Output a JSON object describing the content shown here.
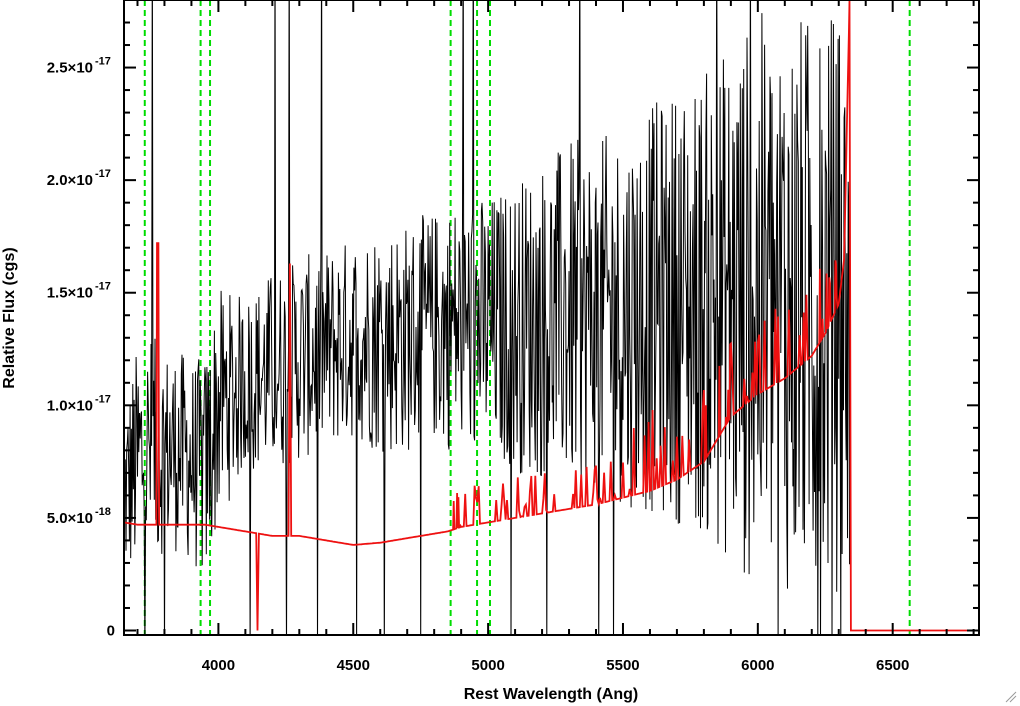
{
  "chart_data": {
    "type": "line",
    "title": "",
    "xlabel": "Rest Wavelength (Ang)",
    "ylabel": "Relative Flux (cgs)",
    "xlim": [
      3650,
      6820
    ],
    "ylim": [
      -2e-19,
      2.8e-17
    ],
    "x_ticks": [
      {
        "value": 4000,
        "label": "4000"
      },
      {
        "value": 4500,
        "label": "4500"
      },
      {
        "value": 5000,
        "label": "5000"
      },
      {
        "value": 5500,
        "label": "5500"
      },
      {
        "value": 6000,
        "label": "6000"
      },
      {
        "value": 6500,
        "label": "6500"
      }
    ],
    "y_ticks": [
      {
        "value": 0,
        "mantissa": "0",
        "exponent": ""
      },
      {
        "value": 5e-18,
        "mantissa": "5.0×10",
        "exponent": "-18"
      },
      {
        "value": 1e-17,
        "mantissa": "1.0×10",
        "exponent": "-17"
      },
      {
        "value": 1.5e-17,
        "mantissa": "1.5×10",
        "exponent": "-17"
      },
      {
        "value": 2e-17,
        "mantissa": "2.0×10",
        "exponent": "-17"
      },
      {
        "value": 2.5e-17,
        "mantissa": "2.5×10",
        "exponent": "-17"
      }
    ],
    "grid": false,
    "reference_lines": {
      "style": "dashed",
      "color": "#00dd00",
      "x": [
        3727,
        3934,
        3969,
        4861,
        4959,
        5007,
        6563
      ]
    },
    "series": [
      {
        "color": "#000000",
        "style": "noisy-spectrum",
        "x": [
          3650,
          3700,
          3750,
          3800,
          3850,
          3900,
          3950,
          4000,
          4100,
          4200,
          4300,
          4400,
          4500,
          4600,
          4700,
          4800,
          4900,
          5000,
          5100,
          5200,
          5300,
          5400,
          5500,
          5600,
          5700,
          5800,
          5900,
          6000,
          6100,
          6200,
          6300,
          6340
        ],
        "values": [
          6e-18,
          7.5e-18,
          8e-18,
          8e-18,
          8e-18,
          7.5e-18,
          7e-18,
          1e-17,
          1.1e-17,
          1.15e-17,
          1.2e-17,
          1.25e-17,
          1.3e-17,
          1.3e-17,
          1.3e-17,
          1.35e-17,
          1.35e-17,
          1.35e-17,
          1.35e-17,
          1.38e-17,
          1.4e-17,
          1.4e-17,
          1.4e-17,
          1.42e-17,
          1.45e-17,
          1.45e-17,
          1.45e-17,
          1.45e-17,
          1.45e-17,
          1.45e-17,
          1.45e-17,
          1.4e-17
        ],
        "noise": [
          3e-18,
          4e-18,
          4e-18,
          3.5e-18,
          3.5e-18,
          3.5e-18,
          4e-18,
          4e-18,
          3e-18,
          3.5e-18,
          3.5e-18,
          3.5e-18,
          3.5e-18,
          4e-18,
          4e-18,
          4e-18,
          4.5e-18,
          4.5e-18,
          5e-18,
          5.5e-18,
          6e-18,
          6e-18,
          6.5e-18,
          7e-18,
          7.5e-18,
          8e-18,
          9e-18,
          1e-17,
          1e-17,
          1e-17,
          1e-17,
          1e-17
        ]
      },
      {
        "color": "#ee1111",
        "style": "model-spectrum",
        "x": [
          3650,
          3700,
          3750,
          3800,
          3850,
          3900,
          3950,
          4000,
          4100,
          4200,
          4300,
          4400,
          4500,
          4600,
          4700,
          4800,
          4850,
          4900,
          5000,
          5100,
          5200,
          5300,
          5400,
          5500,
          5600,
          5700,
          5800,
          5850,
          5900,
          6000,
          6100,
          6200,
          6250,
          6300,
          6320,
          6340,
          6345,
          6820
        ],
        "values": [
          4.8e-18,
          4.7e-18,
          4.7e-18,
          4.7e-18,
          4.7e-18,
          4.7e-18,
          4.7e-18,
          4.6e-18,
          4.4e-18,
          4.2e-18,
          4.2e-18,
          4e-18,
          3.8e-18,
          3.9e-18,
          4.1e-18,
          4.3e-18,
          4.4e-18,
          4.6e-18,
          4.8e-18,
          5e-18,
          5.2e-18,
          5.4e-18,
          5.6e-18,
          5.9e-18,
          6.2e-18,
          6.7e-18,
          7.5e-18,
          8.5e-18,
          9.5e-18,
          1.05e-17,
          1.12e-17,
          1.22e-17,
          1.32e-17,
          1.45e-17,
          1.65e-17,
          2.8e-17,
          0,
          0
        ]
      }
    ]
  }
}
